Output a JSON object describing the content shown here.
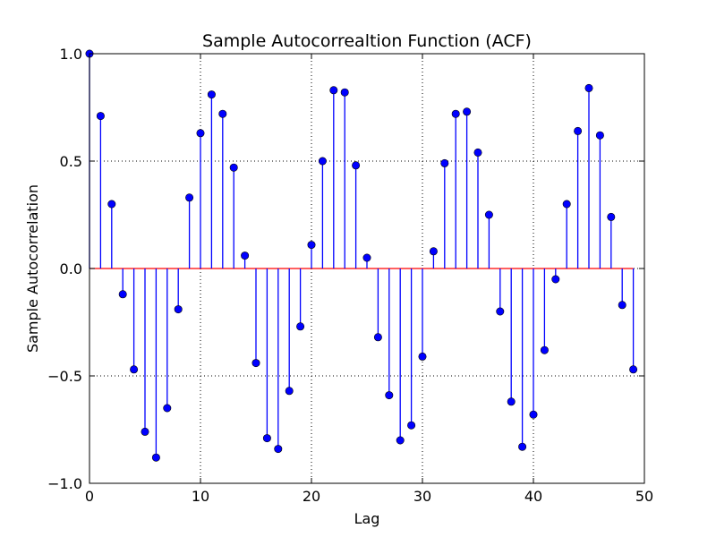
{
  "chart_data": {
    "type": "stem",
    "title": "Sample Autocorrealtion Function (ACF)",
    "xlabel": "Lag",
    "ylabel": "Sample Autocorrelation",
    "xlim": [
      0,
      50
    ],
    "ylim": [
      -1.0,
      1.0
    ],
    "xticks": [
      0,
      10,
      20,
      30,
      40,
      50
    ],
    "xtick_labels": [
      "0",
      "10",
      "20",
      "30",
      "40",
      "50"
    ],
    "yticks": [
      -1.0,
      -0.5,
      0.0,
      0.5,
      1.0
    ],
    "ytick_labels": [
      "−1.0",
      "−0.5",
      "0.0",
      "0.5",
      "1.0"
    ],
    "grid": true,
    "baseline_color": "#ff0000",
    "stem_color": "#0000ff",
    "marker_color": "#0000ff",
    "x": [
      0,
      1,
      2,
      3,
      4,
      5,
      6,
      7,
      8,
      9,
      10,
      11,
      12,
      13,
      14,
      15,
      16,
      17,
      18,
      19,
      20,
      21,
      22,
      23,
      24,
      25,
      26,
      27,
      28,
      29,
      30,
      31,
      32,
      33,
      34,
      35,
      36,
      37,
      38,
      39,
      40,
      41,
      42,
      43,
      44,
      45,
      46,
      47,
      48,
      49
    ],
    "values": [
      1.0,
      0.71,
      0.3,
      -0.12,
      -0.47,
      -0.76,
      -0.88,
      -0.65,
      -0.19,
      0.33,
      0.63,
      0.81,
      0.72,
      0.47,
      0.06,
      -0.44,
      -0.79,
      -0.84,
      -0.57,
      -0.27,
      0.11,
      0.5,
      0.83,
      0.82,
      0.48,
      0.05,
      -0.32,
      -0.59,
      -0.8,
      -0.73,
      -0.41,
      0.08,
      0.49,
      0.72,
      0.73,
      0.54,
      0.25,
      -0.2,
      -0.62,
      -0.83,
      -0.68,
      -0.38,
      -0.05,
      0.3,
      0.64,
      0.84,
      0.62,
      0.24,
      -0.17,
      -0.47
    ]
  }
}
